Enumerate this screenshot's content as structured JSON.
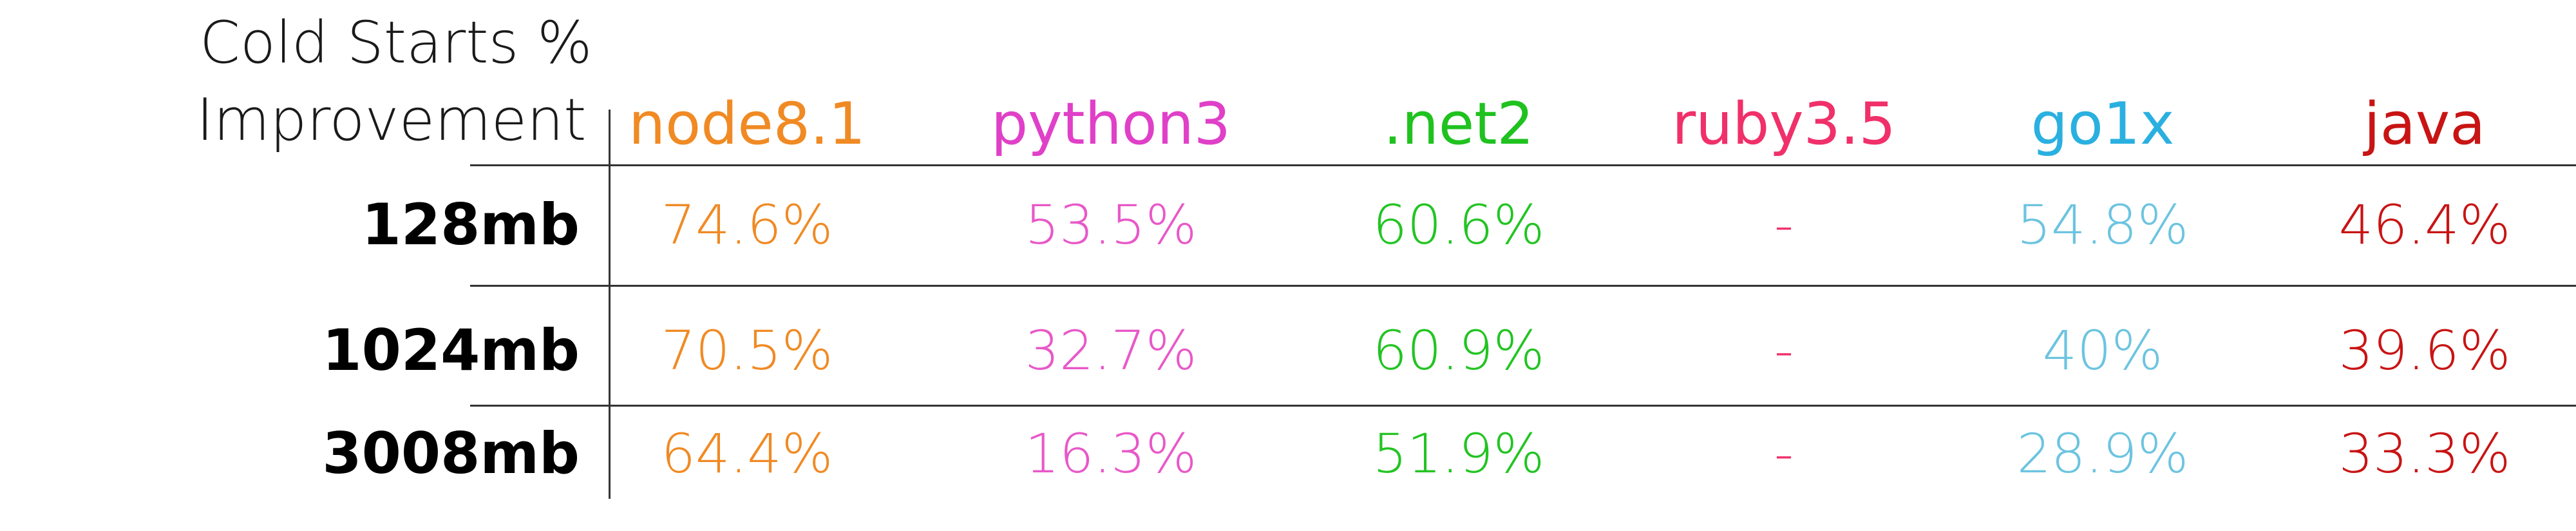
{
  "chart_data": {
    "type": "table",
    "title_lines": [
      "Cold Starts %",
      "Improvement"
    ],
    "columns": [
      {
        "name": "node8.1",
        "color": "#f08a24"
      },
      {
        "name": "python3",
        "color": "#e040c8"
      },
      {
        "name": ".net2",
        "color": "#1fc21f"
      },
      {
        "name": "ruby3.5",
        "color": "#f0306a"
      },
      {
        "name": "go1x",
        "color": "#2ab0e0"
      },
      {
        "name": "java",
        "color": "#c81414"
      }
    ],
    "rows": [
      {
        "label": "128mb",
        "values": [
          "74.6%",
          "53.5%",
          "60.6%",
          "-",
          "54.8%",
          "46.4%"
        ]
      },
      {
        "label": "1024mb",
        "values": [
          "70.5%",
          "32.7%",
          "60.9%",
          "-",
          "40%",
          "39.6%"
        ]
      },
      {
        "label": "3008mb",
        "values": [
          "64.4%",
          "16.3%",
          "51.9%",
          "-",
          "28.9%",
          "33.3%"
        ]
      }
    ],
    "cell_colors": [
      "#f08a24",
      "#e858c8",
      "#22c422",
      "#f0306a",
      "#6cc4e0",
      "#c81414"
    ]
  }
}
